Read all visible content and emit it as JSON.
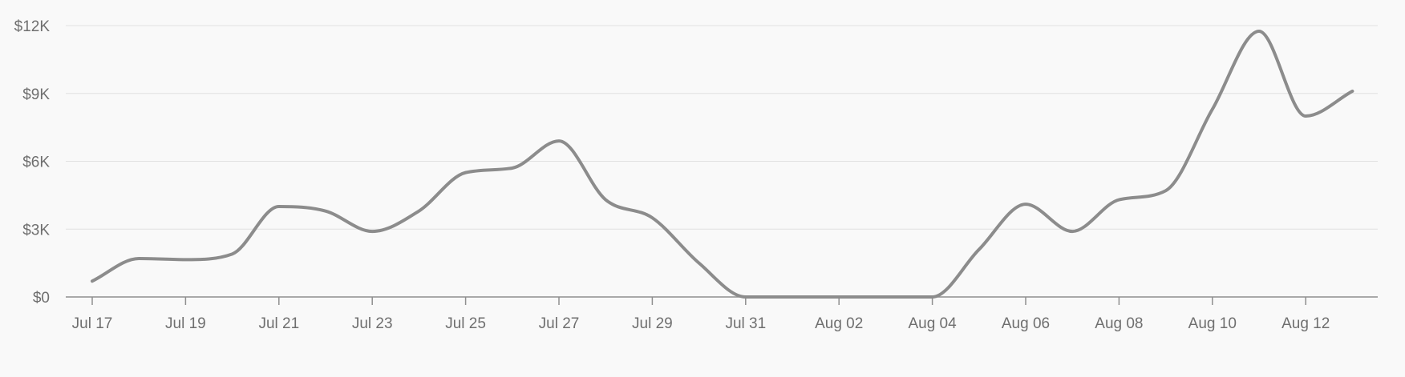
{
  "chart_data": {
    "type": "line",
    "title": "",
    "xlabel": "",
    "ylabel": "",
    "ylim": [
      0,
      12000
    ],
    "grid": true,
    "legend": "none",
    "x_tick_labels": [
      "Jul 17",
      "Jul 19",
      "Jul 21",
      "Jul 23",
      "Jul 25",
      "Jul 27",
      "Jul 29",
      "Jul 31",
      "Aug 02",
      "Aug 04",
      "Aug 06",
      "Aug 08",
      "Aug 10",
      "Aug 12"
    ],
    "y_tick_labels": [
      "$0",
      "$3K",
      "$6K",
      "$9K",
      "$12K"
    ],
    "y_tick_values": [
      0,
      3000,
      6000,
      9000,
      12000
    ],
    "x": [
      "Jul 17",
      "Jul 18",
      "Jul 19",
      "Jul 20",
      "Jul 21",
      "Jul 22",
      "Jul 23",
      "Jul 24",
      "Jul 25",
      "Jul 26",
      "Jul 27",
      "Jul 28",
      "Jul 29",
      "Jul 30",
      "Jul 31",
      "Aug 01",
      "Aug 02",
      "Aug 03",
      "Aug 04",
      "Aug 05",
      "Aug 06",
      "Aug 07",
      "Aug 08",
      "Aug 09",
      "Aug 10",
      "Aug 11",
      "Aug 12",
      "Aug 13"
    ],
    "series": [
      {
        "values": [
          700,
          1700,
          1650,
          1900,
          4000,
          3800,
          2900,
          3800,
          5500,
          5700,
          6900,
          4300,
          3500,
          1500,
          0,
          0,
          0,
          0,
          0,
          2100,
          4100,
          2900,
          4300,
          4700,
          8300,
          11750,
          8000,
          9100
        ]
      }
    ],
    "colors": {
      "line": "#8c8c8c",
      "grid": "#e1e1e1",
      "axis": "#8f8f8f",
      "background": "#f9f9f9"
    }
  }
}
